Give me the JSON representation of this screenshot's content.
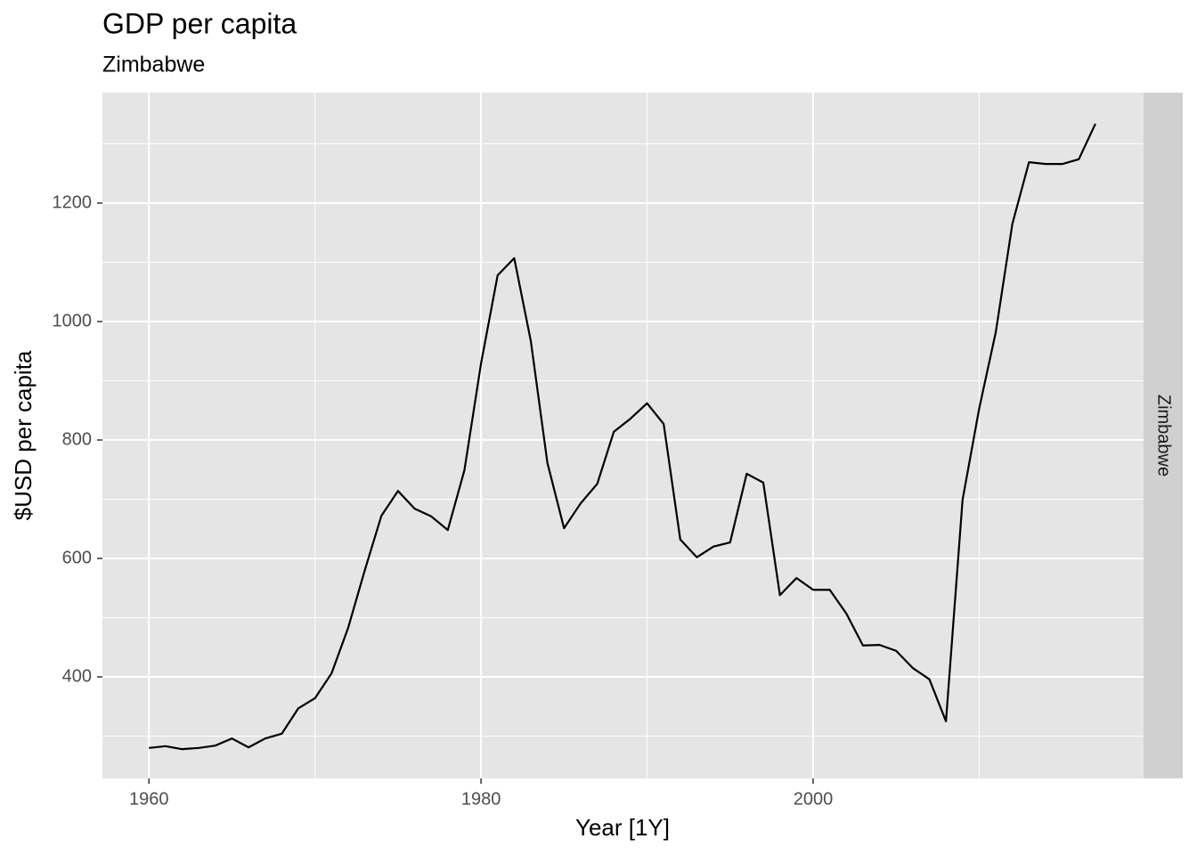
{
  "chart_data": {
    "type": "line",
    "title": "GDP per capita",
    "subtitle": "Zimbabwe",
    "facet": "Zimbabwe",
    "x_label": "Year [1Y]",
    "y_label": "$USD per capita",
    "x": [
      1960,
      1961,
      1962,
      1963,
      1964,
      1965,
      1966,
      1967,
      1968,
      1969,
      1970,
      1971,
      1972,
      1973,
      1974,
      1975,
      1976,
      1977,
      1978,
      1979,
      1980,
      1981,
      1982,
      1983,
      1984,
      1985,
      1986,
      1987,
      1988,
      1989,
      1990,
      1991,
      1992,
      1993,
      1994,
      1995,
      1996,
      1997,
      1998,
      1999,
      2000,
      2001,
      2002,
      2003,
      2004,
      2005,
      2006,
      2007,
      2008,
      2009,
      2010,
      2011,
      2012,
      2013,
      2014,
      2015,
      2016,
      2017
    ],
    "series": [
      {
        "name": "Zimbabwe",
        "color": "#000000",
        "values": [
          280,
          283,
          278,
          280,
          284,
          296,
          281,
          296,
          304,
          347,
          364,
          406,
          483,
          580,
          672,
          714,
          684,
          671,
          648,
          749,
          929,
          1078,
          1107,
          967,
          761,
          651,
          693,
          726,
          814,
          836,
          862,
          827,
          632,
          602,
          620,
          627,
          743,
          728,
          538,
          567,
          547,
          547,
          507,
          453,
          454,
          444,
          415,
          396,
          325,
          699,
          853,
          982,
          1165,
          1269,
          1266,
          1266,
          1274,
          1334
        ]
      }
    ],
    "xlim": [
      1957.2,
      2019.9
    ],
    "ylim": [
      228.6,
      1386.5
    ],
    "xticks": [
      1960,
      1980,
      2000
    ],
    "yticks": [
      400,
      600,
      800,
      1000,
      1200
    ],
    "grid": true
  }
}
